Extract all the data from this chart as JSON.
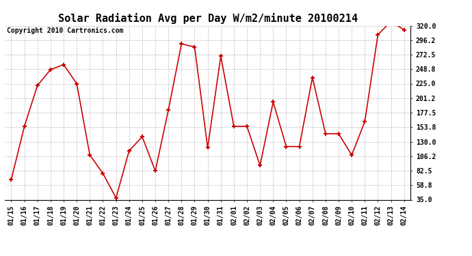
{
  "title": "Solar Radiation Avg per Day W/m2/minute 20100214",
  "copyright": "Copyright 2010 Cartronics.com",
  "labels": [
    "01/15",
    "01/16",
    "01/17",
    "01/18",
    "01/19",
    "01/20",
    "01/21",
    "01/22",
    "01/23",
    "01/24",
    "01/25",
    "01/26",
    "01/27",
    "01/28",
    "01/29",
    "01/30",
    "01/31",
    "02/01",
    "02/02",
    "02/03",
    "02/04",
    "02/05",
    "02/06",
    "02/07",
    "02/08",
    "02/09",
    "02/10",
    "02/11",
    "02/12",
    "02/13",
    "02/14"
  ],
  "values": [
    68,
    155,
    222,
    248,
    256,
    225,
    108,
    78,
    38,
    115,
    138,
    82,
    182,
    290,
    285,
    120,
    270,
    155,
    155,
    91,
    195,
    122,
    122,
    235,
    143,
    143,
    108,
    163,
    305,
    327,
    313
  ],
  "line_color": "#cc0000",
  "marker_color": "#cc0000",
  "bg_color": "#ffffff",
  "grid_color": "#bbbbbb",
  "yticks": [
    35.0,
    58.8,
    82.5,
    106.2,
    130.0,
    153.8,
    177.5,
    201.2,
    225.0,
    248.8,
    272.5,
    296.2,
    320.0
  ],
  "ymin": 35.0,
  "ymax": 320.0,
  "title_fontsize": 11,
  "tick_fontsize": 7,
  "copyright_fontsize": 7
}
